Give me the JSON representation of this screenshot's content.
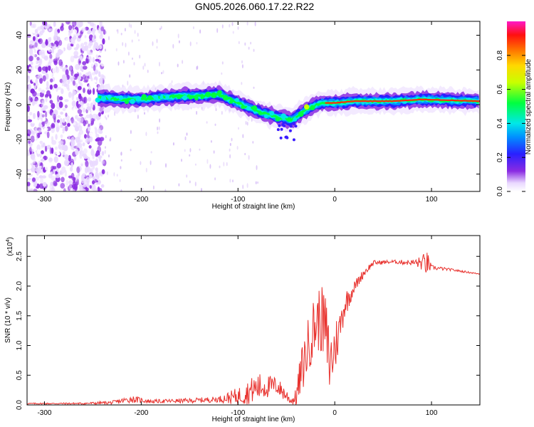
{
  "title": "GN05.2026.060.17.22.R22",
  "chart_data": [
    {
      "type": "heatmap",
      "xlabel": "Height of straight line (km)",
      "ylabel": "Frequency (Hz)",
      "xlim": [
        -318,
        150
      ],
      "ylim": [
        -50,
        48
      ],
      "xticks": [
        -300,
        -200,
        -100,
        0,
        100
      ],
      "yticks": [
        -40,
        -20,
        0,
        20,
        40
      ],
      "colorbar": {
        "label": "Normalized spectral amplitude",
        "ticks": [
          "0.0",
          "0.2",
          "0.4",
          "0.6",
          "0.8"
        ],
        "range": [
          0,
          1
        ],
        "colormap": "rainbow (white-violet-blue-cyan-green-yellow-red-magenta)"
      },
      "ridge": {
        "x": [
          -245,
          -220,
          -200,
          -180,
          -160,
          -140,
          -120,
          -100,
          -80,
          -60,
          -45,
          -30,
          -15,
          0,
          20,
          60,
          90,
          150
        ],
        "y": [
          4,
          3,
          3,
          4,
          5,
          5,
          6,
          1,
          -4,
          -7,
          -9,
          -3,
          1,
          1,
          2,
          2,
          3,
          2
        ]
      },
      "noise_region_x": [
        -318,
        -238
      ]
    },
    {
      "type": "line",
      "xlabel": "Height of straight line (km)",
      "ylabel": "SNR (10 * v/v)",
      "y_multiplier": "(x10⁴)",
      "y_multiplier_base": "(x10",
      "y_multiplier_exp": "4",
      "xlim": [
        -318,
        150
      ],
      "ylim": [
        0,
        2.85
      ],
      "xticks": [
        -300,
        -200,
        -100,
        0,
        100
      ],
      "yticks": [
        "0.0",
        "0.5",
        "1.0",
        "1.5",
        "2.0",
        "2.5"
      ],
      "series": [
        {
          "color": "#e8322e",
          "envelope": {
            "x": [
              -318,
              -260,
              -230,
              -210,
              -190,
              -150,
              -120,
              -100,
              -90,
              -80,
              -70,
              -60,
              -50,
              -45,
              -40,
              -35,
              -30,
              -25,
              -20,
              -15,
              -10,
              -5,
              0,
              5,
              10,
              20,
              30,
              40,
              60,
              80,
              90,
              95,
              100,
              120,
              150
            ],
            "base": [
              0.02,
              0.02,
              0.03,
              0.08,
              0.05,
              0.06,
              0.08,
              0.1,
              0.15,
              0.22,
              0.25,
              0.28,
              0.12,
              0.05,
              0.08,
              0.4,
              0.7,
              1.0,
              1.2,
              1.3,
              1.1,
              0.5,
              0.8,
              1.2,
              1.6,
              1.95,
              2.2,
              2.38,
              2.4,
              2.38,
              2.35,
              2.32,
              2.3,
              2.27,
              2.2
            ],
            "spread": [
              0.02,
              0.03,
              0.06,
              0.12,
              0.06,
              0.08,
              0.1,
              0.3,
              0.4,
              0.5,
              0.4,
              0.3,
              0.25,
              0.1,
              0.3,
              0.8,
              0.9,
              1.0,
              1.1,
              1.1,
              1.3,
              1.2,
              1.0,
              0.6,
              0.5,
              0.2,
              0.15,
              0.08,
              0.06,
              0.1,
              0.25,
              0.45,
              0.08,
              0.04,
              0.02
            ]
          }
        }
      ]
    }
  ]
}
